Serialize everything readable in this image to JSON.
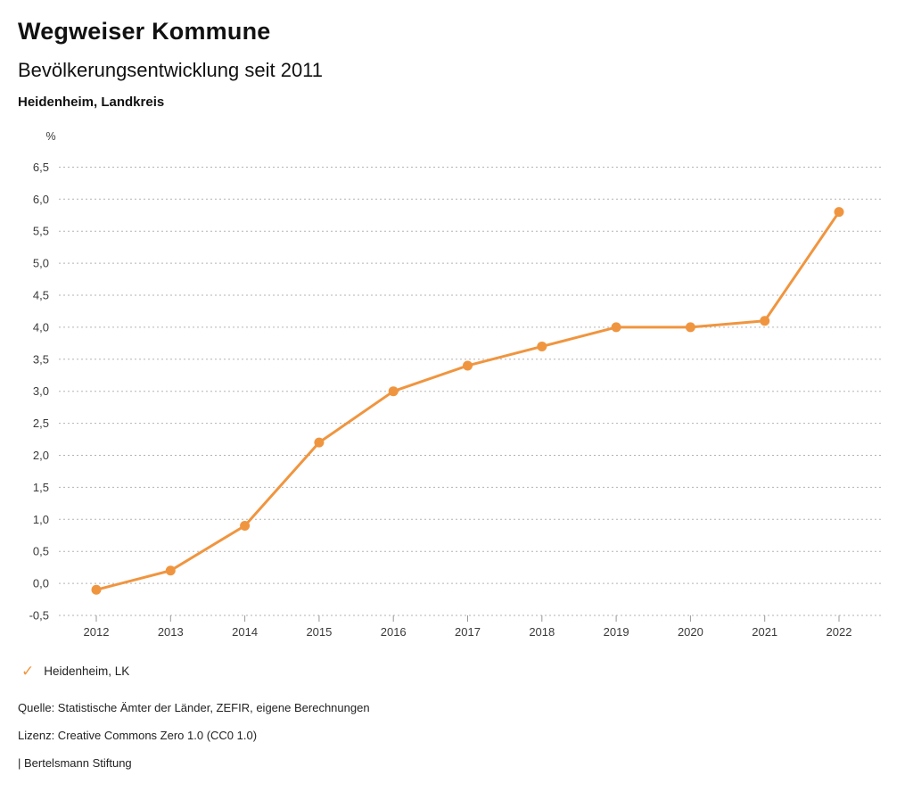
{
  "header": {
    "title": "Wegweiser Kommune",
    "subtitle": "Bevölkerungsentwicklung seit 2011",
    "region": "Heidenheim, Landkreis"
  },
  "legend": {
    "items": [
      {
        "label": "Heidenheim, LK",
        "color": "#F0953F",
        "marker": "checkmark-icon"
      }
    ]
  },
  "footer": {
    "source": "Quelle: Statistische Ämter der Länder, ZEFIR, eigene Berechnungen",
    "license": "Lizenz: Creative Commons Zero 1.0 (CC0 1.0)",
    "brand": "| Bertelsmann Stiftung"
  },
  "colors": {
    "accent": "#F0953F",
    "gridline": "#b3b3b3",
    "tick": "#999999",
    "axis_text": "#3a3a3a"
  },
  "chart_data": {
    "type": "line",
    "title": "Bevölkerungsentwicklung seit 2011",
    "subtitle_region": "Heidenheim, Landkreis",
    "categories": [
      "2012",
      "2013",
      "2014",
      "2015",
      "2016",
      "2017",
      "2018",
      "2019",
      "2020",
      "2021",
      "2022"
    ],
    "series": [
      {
        "name": "Heidenheim, LK",
        "color": "#F0953F",
        "values": [
          -0.1,
          0.2,
          0.9,
          2.2,
          3.0,
          3.4,
          3.7,
          4.0,
          4.0,
          4.1,
          5.8
        ]
      }
    ],
    "xlabel": "",
    "ylabel": "%",
    "ylim": [
      -0.5,
      6.5
    ],
    "ytick_step": 0.5,
    "decimal_separator": ",",
    "grid": "horizontal-dotted",
    "legend_position": "bottom-left"
  }
}
